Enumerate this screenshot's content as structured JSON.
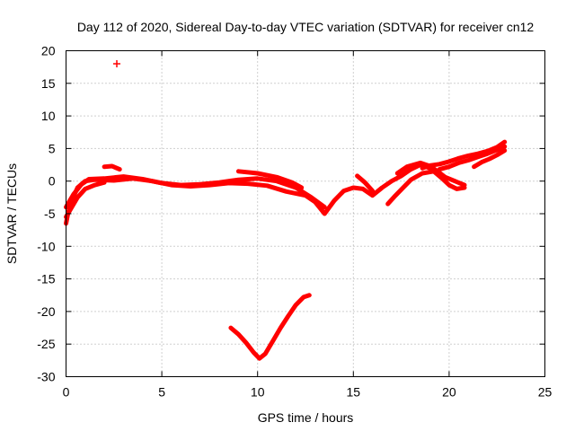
{
  "chart_data": {
    "type": "scatter",
    "title": "Day 112 of 2020, Sidereal Day-to-day VTEC variation (SDTVAR) for receiver cn12",
    "xlabel": "GPS time / hours",
    "ylabel": "SDTVAR / TECUs",
    "xlim": [
      0,
      25
    ],
    "ylim": [
      -30,
      20
    ],
    "xticks": [
      0,
      5,
      10,
      15,
      20,
      25
    ],
    "yticks": [
      -30,
      -25,
      -20,
      -15,
      -10,
      -5,
      0,
      5,
      10,
      15,
      20
    ],
    "grid": true,
    "color": "#ff0000",
    "series": [
      {
        "name": "main-track-a",
        "points": [
          [
            0.0,
            -6.5
          ],
          [
            0.1,
            -5.0
          ],
          [
            0.3,
            -3.0
          ],
          [
            0.6,
            -1.0
          ],
          [
            1.0,
            0.0
          ],
          [
            1.5,
            0.2
          ],
          [
            2.5,
            0.1
          ],
          [
            3.5,
            0.4
          ],
          [
            4.5,
            0.0
          ],
          [
            5.5,
            -0.6
          ],
          [
            6.5,
            -0.8
          ],
          [
            7.5,
            -0.6
          ],
          [
            8.5,
            -0.3
          ],
          [
            9.5,
            -0.4
          ],
          [
            10.5,
            -0.7
          ],
          [
            11.5,
            -1.6
          ],
          [
            12.5,
            -2.2
          ],
          [
            13.0,
            -3.2
          ],
          [
            13.5,
            -5.0
          ],
          [
            14.0,
            -3.0
          ],
          [
            14.5,
            -1.5
          ],
          [
            15.0,
            -1.0
          ],
          [
            15.5,
            -1.2
          ],
          [
            16.0,
            -2.2
          ],
          [
            16.5,
            -1.0
          ],
          [
            17.0,
            0.0
          ],
          [
            17.5,
            0.8
          ],
          [
            18.0,
            1.8
          ],
          [
            18.5,
            2.5
          ],
          [
            19.0,
            2.0
          ]
        ]
      },
      {
        "name": "main-track-b",
        "points": [
          [
            0.0,
            -4.0
          ],
          [
            0.4,
            -2.0
          ],
          [
            0.8,
            -0.5
          ],
          [
            1.2,
            0.3
          ],
          [
            2.0,
            0.4
          ],
          [
            3.0,
            0.7
          ],
          [
            4.0,
            0.3
          ],
          [
            5.0,
            -0.3
          ],
          [
            6.0,
            -0.6
          ],
          [
            7.0,
            -0.5
          ],
          [
            8.0,
            -0.2
          ],
          [
            9.0,
            0.2
          ],
          [
            10.0,
            0.4
          ],
          [
            11.0,
            0.0
          ],
          [
            12.0,
            -1.0
          ],
          [
            12.8,
            -2.5
          ],
          [
            13.5,
            -4.0
          ]
        ]
      },
      {
        "name": "lower-branch",
        "points": [
          [
            0.0,
            -5.5
          ],
          [
            0.3,
            -4.0
          ],
          [
            0.6,
            -2.5
          ],
          [
            1.0,
            -1.2
          ],
          [
            1.5,
            -0.6
          ],
          [
            2.0,
            -0.2
          ]
        ]
      },
      {
        "name": "upper-branch",
        "points": [
          [
            9.0,
            1.5
          ],
          [
            10.0,
            1.2
          ],
          [
            11.0,
            0.6
          ],
          [
            11.8,
            -0.2
          ],
          [
            12.3,
            -1.0
          ]
        ]
      },
      {
        "name": "branch-2-5h",
        "points": [
          [
            2.0,
            2.2
          ],
          [
            2.4,
            2.3
          ],
          [
            2.8,
            1.8
          ]
        ]
      },
      {
        "name": "branch-15h",
        "points": [
          [
            15.2,
            0.8
          ],
          [
            15.6,
            -0.2
          ],
          [
            16.0,
            -1.5
          ]
        ]
      },
      {
        "name": "branch-17h",
        "points": [
          [
            16.8,
            -3.5
          ],
          [
            17.2,
            -2.2
          ],
          [
            17.6,
            -1.0
          ],
          [
            18.0,
            0.2
          ],
          [
            18.6,
            1.2
          ],
          [
            19.2,
            1.5
          ],
          [
            19.6,
            0.5
          ],
          [
            20.0,
            -0.6
          ],
          [
            20.4,
            -1.2
          ],
          [
            20.8,
            -1.0
          ]
        ]
      },
      {
        "name": "branch-18h",
        "points": [
          [
            17.3,
            1.2
          ],
          [
            17.8,
            2.2
          ],
          [
            18.5,
            2.8
          ],
          [
            19.0,
            2.3
          ],
          [
            19.4,
            1.5
          ],
          [
            19.8,
            0.6
          ],
          [
            20.3,
            0.0
          ],
          [
            20.8,
            -0.6
          ]
        ]
      },
      {
        "name": "branch-19h",
        "points": [
          [
            18.6,
            2.0
          ],
          [
            19.0,
            2.4
          ],
          [
            19.5,
            2.6
          ],
          [
            20.0,
            3.0
          ],
          [
            20.5,
            3.5
          ],
          [
            21.0,
            3.9
          ],
          [
            21.5,
            4.2
          ],
          [
            22.0,
            4.6
          ],
          [
            22.5,
            5.2
          ],
          [
            22.9,
            6.0
          ]
        ]
      },
      {
        "name": "branch-21h",
        "points": [
          [
            19.5,
            1.8
          ],
          [
            20.0,
            2.2
          ],
          [
            20.5,
            2.8
          ],
          [
            21.0,
            3.2
          ],
          [
            21.5,
            3.7
          ],
          [
            22.0,
            4.2
          ],
          [
            22.5,
            4.8
          ],
          [
            22.9,
            5.3
          ]
        ]
      },
      {
        "name": "branch-22h",
        "points": [
          [
            21.3,
            2.2
          ],
          [
            21.7,
            2.9
          ],
          [
            22.1,
            3.4
          ],
          [
            22.5,
            4.0
          ],
          [
            22.9,
            4.7
          ]
        ]
      },
      {
        "name": "v-dip",
        "points": [
          [
            8.6,
            -22.5
          ],
          [
            9.0,
            -23.5
          ],
          [
            9.4,
            -24.8
          ],
          [
            9.8,
            -26.3
          ],
          [
            10.1,
            -27.2
          ],
          [
            10.4,
            -26.5
          ],
          [
            10.8,
            -24.5
          ],
          [
            11.2,
            -22.5
          ],
          [
            11.6,
            -20.7
          ],
          [
            12.0,
            -19.0
          ],
          [
            12.4,
            -17.8
          ],
          [
            12.7,
            -17.5
          ]
        ]
      },
      {
        "name": "outlier",
        "points": [
          [
            2.65,
            18.0
          ]
        ]
      }
    ]
  }
}
